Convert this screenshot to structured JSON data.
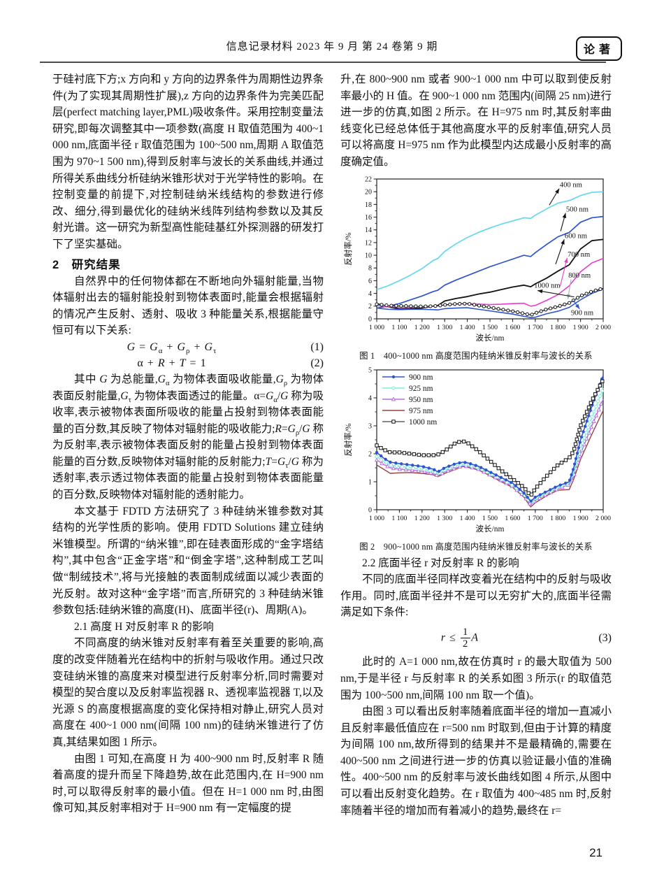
{
  "header": {
    "journal_line": "信息记录材料 2023 年 9 月 第 24 卷第 9 期",
    "badge": "论著"
  },
  "footer": {
    "page_number": "21"
  },
  "left_column": {
    "para_continuation": "于硅衬底下方;x 方向和 y 方向的边界条件为周期性边界条件(为了实现其周期性扩展),z 方向的边界条件为完美匹配层(perfect matching layer,PML)吸收条件。采用控制变量法研究,即每次调整其中一项参数(高度 H 取值范围为 400~1 000 nm,底面半径 r 取值范围为 100~500 nm,周期 A 取值范围为 970~1 500 nm),得到反射率与波长的关系曲线,并通过所得关系曲线分析硅纳米锥形状对于光学特性的影响。在控制变量的前提下,对控制硅纳米线结构的参数进行修改、细分,得到最优化的硅纳米线阵列结构参数以及其反射光谱。这一研究为新型高性能硅基红外探测器的研发打下了坚实基础。",
    "section2_heading": "2　研究结果",
    "para_radiation": "自然界中的任何物体都在不断地向外辐射能量,当物体辐射出去的辐射能投射到物体表面时,能量会根据辐射的情况产生反射、透射、吸收 3 种能量关系,根据能量守恒可有以下关系:",
    "eq1": {
      "html": "<i>G</i> = <i>G</i><sub>α</sub> + <i>G</i><sub>ρ</sub> + <i>G</i><sub>τ</sub>",
      "number": "(1)"
    },
    "eq2": {
      "html": "α + <i>R</i> + <i>T</i> = 1",
      "number": "(2)"
    },
    "para_energy_terms_html": "其中 <i>G</i> 为总能量,<i>G</i><sub>α</sub> 为物体表面吸收能量,<i>G</i><sub>ρ</sub> 为物体表面反射能量,<i>G</i><sub>τ</sub> 为物体表面透过的能量。α=<i>G</i><sub>α</sub>/<i>G</i> 称为吸收率,表示被物体表面所吸收的能量占投射到物体表面能量的百分数,其反映了物体对辐射能的吸收能力;<i>R</i>=<i>G</i><sub>ρ</sub>/<i>G</i> 称为反射率,表示被物体表面反射的能量占投射到物体表面能量的百分数,反映物体对辐射能的反射能力;<i>T</i>=<i>G</i><sub>τ</sub>/<i>G</i> 称为透射率,表示透过物体表面的能量占投射到物体表面能量的百分数,反映物体对辐射能的透射能力。",
    "para_fdtd": "本文基于 FDTD 方法研究了 3 种硅纳米锥参数对其结构的光学性质的影响。使用 FDTD Solutions 建立硅纳米锥模型。所谓的“纳米锥”,即在硅表面形成的“金字塔结构”,其中包含“正金字塔”和“倒金字塔”,这种制成工艺叫做“制绒技术”,将与光接触的表面制成绒面以减少表面的光反射。故对这种“金字塔”而言,所研究的 3 种硅纳米锥参数包括:硅纳米锥的高度(H)、底面半径(r)、周期(A)。",
    "section21_heading": "2.1 高度 H 对反射率 R 的影响",
    "para_height1": "不同高度的纳米锥对反射率有着至关重要的影响,高度的改变伴随着光在结构中的折射与吸收作用。通过只改变硅纳米锥的高度来对模型进行反射率分析,同时需要对模型的契合度以及反射率监视器 R、透视率监视器 T,以及光源 S 的高度根据高度的变化保持相对静止,研究人员对高度在 400~1 000 nm(间隔 100 nm)的硅纳米锥进行了仿真,其结果如图 1 所示。",
    "para_height2": "由图 1 可知,在高度 H 为 400~900 nm 时,反射率 R 随着高度的提升而呈下降趋势,故在此范围内,在 H=900 nm 时,可以取得反射率的最小值。但在 H=1 000 nm 时,由图像可知,其反射率相对于 H=900 nm 有一定幅度的提"
  },
  "right_column": {
    "para_rise": "升,在 800~900 nm 或者 900~1 000 nm 中可以取到使反射率最小的 H 值。在 900~1 000 nm 范围内(间隔 25 nm)进行进一步的仿真,如图 2 所示。在 H=975 nm 时,其反射率曲线变化已经总体低于其他高度水平的反射率值,研究人员可以将高度 H=975 nm 作为此模型内达成最小反射率的高度确定值。",
    "fig1_caption": "图 1　400~1000 nm 高度范围内硅纳米锥反射率与波长的关系",
    "fig2_caption": "图 2　900~1000 nm 高度范围内硅纳米锥反射率与波长的关系",
    "section22_heading": "2.2 底面半径 r 对反射率 R 的影响",
    "para_radius1": "不同的底面半径同样改变着光在结构中的反射与吸收作用。同时,底面半径并不是可以无穷扩大的,底面半径需满足如下条件:",
    "eq3": {
      "html": "<i>r</i> ≤ <span class=\"frac\"><span>1</span><span>2</span></span><i>A</i>",
      "number": "(3)"
    },
    "para_radius2": "此时的 A=1 000 nm,故在仿真时 r 的最大取值为 500 nm,于是半径 r 与反射率 R 的关系如图 3 所示(r 的取值范围为 100~500 nm,间隔 100 nm 取一个值)。",
    "para_radius3": "由图 3 可以看出反射率随着底面半径的增加一直减小且反射率最低值应在 r=500 nm 时取到,但由于计算的精度为间隔 100 nm,故所得到的结果并不是最精确的,需要在 400~500 nm 之间进行进一步的仿真以验证最小值的准确性。400~500 nm 的反射率与波长曲线如图 4 所示,从图中可以看出反射变化趋势。在 r 取值为 400~485 nm 时,反射率随着半径的增加而有着减小的趋势,最终在 r="
  },
  "chart_data": [
    {
      "type": "line",
      "title": "硅纳米锥高度 400~1000 nm 反射率-波长曲线",
      "xlabel": "波长/nm",
      "ylabel": "反射率/%",
      "x_range": [
        1000,
        2000
      ],
      "y_range": [
        0,
        22
      ],
      "x_major": 100,
      "x_minor": 50,
      "y_major": 2,
      "y_minor": 1,
      "x_tick_labels": [
        "1 000",
        "1 100",
        "1 200",
        "1 300",
        "1 400",
        "1 500",
        "1 600",
        "1 700",
        "1 800",
        "1 900",
        "2 000"
      ],
      "y_tick_labels": [
        "0",
        "2",
        "4",
        "6",
        "8",
        "10",
        "12",
        "14",
        "16",
        "18",
        "20",
        "22"
      ],
      "grid": false,
      "legend": false,
      "x": [
        1000,
        1050,
        1100,
        1150,
        1200,
        1250,
        1270,
        1300,
        1350,
        1400,
        1450,
        1500,
        1550,
        1600,
        1650,
        1680,
        1700,
        1750,
        1800,
        1850,
        1900,
        1950,
        2000
      ],
      "series": [
        {
          "name": "400 nm",
          "color": "#6fd8ef",
          "width": 1.8,
          "marker": null,
          "values": [
            4.6,
            5.2,
            6.0,
            6.9,
            7.9,
            9.2,
            9.5,
            10.6,
            11.8,
            12.8,
            13.6,
            14.3,
            14.9,
            15.4,
            15.9,
            15.8,
            16.3,
            17.3,
            18.2,
            18.6,
            19.4,
            19.9,
            20.0
          ]
        },
        {
          "name": "500 nm",
          "color": "#2e55cf",
          "width": 1.7,
          "marker": null,
          "values": [
            1.7,
            2.0,
            2.4,
            3.0,
            3.6,
            4.3,
            4.5,
            5.3,
            6.1,
            6.8,
            7.5,
            8.2,
            8.8,
            9.4,
            10.0,
            9.8,
            10.4,
            11.7,
            12.9,
            13.6,
            15.2,
            15.9,
            16.1
          ]
        },
        {
          "name": "600 nm",
          "color": "#111111",
          "width": 1.8,
          "marker": null,
          "values": [
            2.4,
            1.9,
            1.55,
            1.6,
            1.7,
            2.0,
            2.1,
            2.8,
            3.2,
            3.5,
            3.9,
            4.2,
            4.6,
            5.0,
            5.3,
            5.05,
            5.5,
            6.4,
            7.5,
            8.5,
            11.0,
            12.3,
            12.5
          ]
        },
        {
          "name": "700 nm",
          "color": "#ec3bd2",
          "width": 1.6,
          "marker": null,
          "values": [
            2.1,
            1.9,
            1.8,
            1.8,
            1.85,
            2.0,
            2.05,
            2.2,
            2.3,
            2.4,
            2.3,
            2.25,
            2.3,
            2.4,
            2.45,
            2.0,
            2.1,
            2.9,
            3.8,
            5.2,
            7.4,
            8.8,
            9.5
          ]
        },
        {
          "name": "800 nm",
          "color": "#a9bcbf",
          "width": 1.4,
          "marker": null,
          "values": [
            2.2,
            2.05,
            2.0,
            1.95,
            1.95,
            2.0,
            2.0,
            2.15,
            2.3,
            2.35,
            2.0,
            1.7,
            1.4,
            1.15,
            0.85,
            0.7,
            0.9,
            1.4,
            1.85,
            2.4,
            3.5,
            4.2,
            4.7
          ]
        },
        {
          "name": "900 nm",
          "color": "#2e55cf",
          "width": 1.6,
          "marker": null,
          "values": [
            1.7,
            1.5,
            1.45,
            1.5,
            1.5,
            1.45,
            1.4,
            1.6,
            1.7,
            1.75,
            1.5,
            1.25,
            1.0,
            0.75,
            0.4,
            0.2,
            0.25,
            0.8,
            1.2,
            1.8,
            3.0,
            4.0,
            4.7
          ]
        },
        {
          "name": "1000 nm",
          "color": "#111111",
          "width": 0.9,
          "marker": "o",
          "step": 7,
          "values": [
            2.3,
            2.1,
            2.05,
            2.0,
            1.95,
            2.0,
            2.05,
            2.2,
            2.35,
            2.4,
            2.1,
            1.8,
            1.5,
            1.2,
            0.85,
            0.6,
            0.9,
            1.5,
            1.95,
            2.5,
            3.6,
            4.3,
            4.8
          ]
        }
      ],
      "annotations": [
        {
          "text": "400 nm",
          "arrow_color": "#111111",
          "tx": 1808,
          "ty": 21.1,
          "line": [
            1762,
            17.9,
            1806,
            20.5
          ]
        },
        {
          "text": "500 nm",
          "arrow_color": "#111111",
          "tx": 1836,
          "ty": 17.25,
          "line": [
            1812,
            13.8,
            1834,
            16.65
          ]
        },
        {
          "text": "600 nm",
          "arrow_color": "#111111",
          "tx": 1830,
          "ty": 13.1,
          "line": [
            1790,
            8.6,
            1828,
            12.5
          ]
        },
        {
          "text": "700 nm",
          "arrow_color": "#ec3bd2",
          "tx": 1843,
          "ty": 10.2,
          "line": [
            1810,
            5.1,
            1841,
            9.6
          ]
        },
        {
          "text": "800 nm",
          "arrow_color": "#9fb3b6",
          "tx": 1846,
          "ty": 6.85,
          "line": [
            1858,
            6.2,
            1844,
            3.1
          ]
        },
        {
          "text": "1000 nm",
          "arrow_color": "#111111",
          "tx": 1695,
          "ty": 5.3,
          "line": [
            1872,
            3.45,
            1710,
            4.45
          ]
        },
        {
          "text": "900 nm",
          "arrow_color": "#2e55cf",
          "tx": 1858,
          "ty": 1.0,
          "line": [
            1868,
            2.9,
            1896,
            1.55
          ]
        }
      ]
    },
    {
      "type": "line",
      "title": "硅纳米锥高度 900~1000 nm 反射率-波长曲线",
      "xlabel": "波长/nm",
      "ylabel": "反射率/%",
      "x_range": [
        1000,
        2000
      ],
      "y_range": [
        0,
        5
      ],
      "x_major": 100,
      "x_minor": 50,
      "y_major": 1,
      "y_minor": 0.5,
      "x_tick_labels": [
        "1 000",
        "1 100",
        "1 200",
        "1 300",
        "1 400",
        "1 500",
        "1 600",
        "1 700",
        "1 800",
        "1 900",
        "2 000"
      ],
      "y_tick_labels": [
        "0",
        "1",
        "2",
        "3",
        "4",
        "5"
      ],
      "grid": false,
      "legend": true,
      "legend_position": "top-left",
      "x": [
        1000,
        1030,
        1060,
        1100,
        1150,
        1200,
        1250,
        1270,
        1300,
        1350,
        1380,
        1400,
        1450,
        1500,
        1550,
        1600,
        1650,
        1680,
        1700,
        1750,
        1800,
        1850,
        1870,
        1900,
        1950,
        2000
      ],
      "series": [
        {
          "name": "975 nm",
          "color": "#97443f",
          "width": 1.4,
          "marker": null,
          "values": [
            1.6,
            1.45,
            1.3,
            1.32,
            1.33,
            1.3,
            1.25,
            1.18,
            1.3,
            1.45,
            1.55,
            1.52,
            1.42,
            1.22,
            1.0,
            0.8,
            0.45,
            0.1,
            0.25,
            0.5,
            0.7,
            0.72,
            1.1,
            1.8,
            2.7,
            3.55
          ]
        },
        {
          "name": "950 nm",
          "color": "#bb6ee4",
          "width": 1.4,
          "marker": "tri",
          "step": 9,
          "values": [
            1.78,
            1.62,
            1.5,
            1.45,
            1.42,
            1.38,
            1.3,
            1.22,
            1.35,
            1.5,
            1.57,
            1.55,
            1.45,
            1.25,
            1.05,
            0.83,
            0.5,
            0.18,
            0.33,
            0.55,
            0.75,
            0.9,
            1.2,
            2.0,
            3.0,
            3.95
          ]
        },
        {
          "name": "925 nm",
          "color": "#7deed9",
          "width": 1.4,
          "marker": "o",
          "step": 8,
          "values": [
            1.9,
            1.73,
            1.6,
            1.55,
            1.5,
            1.45,
            1.38,
            1.28,
            1.42,
            1.58,
            1.63,
            1.6,
            1.5,
            1.3,
            1.1,
            0.88,
            0.55,
            0.25,
            0.4,
            0.6,
            0.8,
            0.95,
            1.35,
            2.2,
            3.3,
            4.35
          ]
        },
        {
          "name": "900 nm",
          "color": "#2e55cf",
          "width": 1.6,
          "marker": "dot",
          "step": 8,
          "values": [
            2.05,
            1.85,
            1.7,
            1.65,
            1.6,
            1.55,
            1.45,
            1.35,
            1.5,
            1.65,
            1.7,
            1.68,
            1.55,
            1.35,
            1.15,
            0.95,
            0.6,
            0.3,
            0.45,
            0.65,
            0.85,
            1.0,
            1.5,
            2.5,
            3.7,
            4.8
          ]
        },
        {
          "name": "1000 nm",
          "color": "#111111",
          "width": 1.1,
          "marker": "sq",
          "step": 7,
          "values": [
            2.3,
            2.15,
            2.05,
            2.05,
            2.0,
            1.95,
            1.95,
            1.97,
            2.1,
            2.4,
            2.45,
            2.4,
            2.1,
            1.75,
            1.4,
            1.1,
            0.8,
            0.5,
            0.75,
            1.2,
            1.6,
            1.85,
            2.1,
            3.0,
            3.9,
            4.65
          ]
        }
      ],
      "legend_order": [
        "900 nm",
        "925 nm",
        "950 nm",
        "975 nm",
        "1000 nm"
      ],
      "annotations": []
    }
  ]
}
